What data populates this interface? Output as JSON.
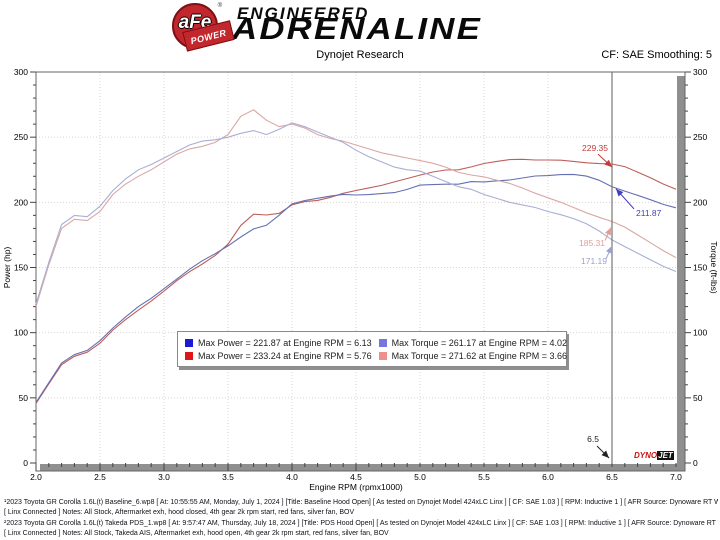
{
  "header": {
    "logo_text": "aFe",
    "logo_sub": "POWER",
    "logo_reg": "®",
    "brand_top": "ENGINEERED",
    "brand_main": "ADRENALINE",
    "smoothing": "CF: SAE Smoothing: 5"
  },
  "chart_data": {
    "type": "line",
    "title": "Dynojet Research",
    "xlabel": "Engine RPM (rpmx1000)",
    "ylabel_left": "Power (hp)",
    "ylabel_right": "Torque (ft-lbs)",
    "xlim": [
      2.0,
      7.0
    ],
    "ylim_left": [
      0,
      300
    ],
    "ylim_right": [
      0,
      300
    ],
    "grid": "dotted",
    "x_ticks": [
      "2.0",
      "2.5",
      "3.0",
      "3.5",
      "4.0",
      "4.5",
      "5.0",
      "5.5",
      "6.0",
      "6.5",
      "7.0"
    ],
    "y_ticks_left": [
      "0",
      "50",
      "100",
      "150",
      "200",
      "250",
      "300"
    ],
    "y_ticks_right": [
      "0",
      "50",
      "100",
      "150",
      "200",
      "250",
      "300"
    ],
    "rpm": [
      2.0,
      2.1,
      2.2,
      2.3,
      2.4,
      2.5,
      2.6,
      2.7,
      2.8,
      2.9,
      3.0,
      3.1,
      3.2,
      3.3,
      3.4,
      3.5,
      3.6,
      3.7,
      3.8,
      3.9,
      4.0,
      4.1,
      4.2,
      4.3,
      4.4,
      4.5,
      4.6,
      4.7,
      4.8,
      4.9,
      5.0,
      5.1,
      5.2,
      5.3,
      5.4,
      5.5,
      5.6,
      5.7,
      5.8,
      5.9,
      6.0,
      6.1,
      6.2,
      6.3,
      6.4,
      6.5,
      6.6,
      6.7,
      6.8,
      6.9,
      7.0
    ],
    "series": [
      {
        "id": "power-takeda",
        "name": "Power - Takeda PDS (red)",
        "axis": "left",
        "color": "#bc5f5c",
        "values": [
          45.7,
          60.8,
          75.4,
          81.9,
          85.0,
          91.9,
          102.0,
          110.0,
          117.3,
          124.2,
          131.9,
          139.9,
          146.8,
          152.7,
          159.3,
          167.9,
          182.3,
          190.9,
          190.3,
          191.6,
          198.0,
          200.6,
          201.5,
          203.9,
          206.9,
          209.1,
          211.1,
          213.0,
          215.7,
          218.3,
          220.9,
          223.3,
          224.8,
          225.0,
          227.2,
          229.8,
          231.4,
          232.8,
          233.0,
          232.5,
          232.5,
          232.3,
          231.4,
          230.3,
          229.7,
          229.4,
          227.4,
          223.2,
          218.8,
          214.1,
          210.1
        ]
      },
      {
        "id": "power-baseline",
        "name": "Power - Baseline (blue)",
        "axis": "left",
        "color": "#6570b2",
        "values": [
          46.5,
          61.6,
          76.7,
          83.2,
          86.4,
          93.8,
          103.5,
          112.1,
          120.0,
          126.4,
          133.7,
          141.1,
          148.7,
          155.2,
          160.6,
          166.6,
          173.4,
          179.6,
          182.4,
          190.1,
          198.8,
          201.4,
          203.1,
          204.8,
          206.1,
          205.6,
          205.9,
          206.7,
          207.5,
          209.9,
          213.2,
          213.6,
          213.9,
          213.9,
          215.9,
          215.7,
          216.5,
          217.1,
          218.7,
          220.2,
          220.5,
          221.3,
          221.4,
          220.1,
          216.9,
          211.9,
          208.6,
          205.4,
          202.0,
          198.4,
          195.8
        ]
      },
      {
        "id": "torque-takeda",
        "name": "Torque - Takeda PDS (pink)",
        "axis": "right",
        "color": "#d9a8a4",
        "values": [
          120,
          152,
          180,
          187,
          186,
          193,
          206,
          214,
          220,
          225,
          231,
          237,
          241,
          243,
          246,
          252,
          266,
          271,
          263,
          258,
          260,
          257,
          252,
          249,
          247,
          244,
          241,
          238,
          236,
          234,
          232,
          230,
          227,
          223,
          221,
          219.5,
          217,
          214.5,
          211,
          207,
          203.5,
          200,
          196,
          192,
          188.5,
          185.3,
          181,
          175,
          169,
          163,
          157.6
        ]
      },
      {
        "id": "torque-baseline",
        "name": "Torque - Baseline (light blue)",
        "axis": "right",
        "color": "#a9afd4",
        "values": [
          122,
          154,
          183,
          190,
          189,
          197,
          209,
          218,
          225,
          229,
          234,
          239,
          244,
          247,
          248,
          250,
          253,
          255,
          252,
          256,
          261,
          258,
          254,
          250,
          246,
          240,
          235,
          231,
          227,
          225,
          224,
          220,
          216,
          212,
          210,
          206,
          203,
          200,
          198,
          196,
          193,
          190.5,
          187.5,
          183.5,
          178,
          171.2,
          166,
          161,
          156,
          151,
          146.9
        ]
      }
    ],
    "legend": {
      "entries": [
        {
          "label": "Max Power = 221.87 at Engine RPM = 6.13",
          "color": "#1b1bd6"
        },
        {
          "label": "Max Torque = 261.17 at Engine RPM = 4.02",
          "color": "#7576e0"
        },
        {
          "label": "Max Power = 233.24 at Engine RPM = 5.76",
          "color": "#e01616"
        },
        {
          "label": "Max Torque = 271.62 at Engine RPM = 3.66",
          "color": "#ef8e8c"
        }
      ]
    },
    "cursor": {
      "rpm": 6.5,
      "label": "6.5"
    },
    "annotations": [
      {
        "text": "229.35",
        "color": "#c23b38",
        "rpm": 6.5,
        "value": 229.35,
        "tip": [
          0,
          3
        ],
        "line_start": [
          -14,
          -13
        ],
        "label_pos": [
          -4,
          -24
        ],
        "anchor": "end"
      },
      {
        "text": "211.87",
        "color": "#4040c0",
        "rpm": 6.5,
        "value": 211.87,
        "tip": [
          4,
          2
        ],
        "line_start": [
          18,
          20
        ],
        "label_pos": [
          20,
          19
        ],
        "anchor": "start"
      },
      {
        "text": "185.31",
        "color": "#de9e9a",
        "rpm": 6.5,
        "value": 185.31,
        "tip": [
          -1,
          6
        ],
        "line_start": [
          -6,
          13
        ],
        "label_pos": [
          -6,
          11
        ],
        "anchor": "end"
      },
      {
        "text": "171.19",
        "color": "#9ba1d2",
        "rpm": 6.5,
        "value": 171.19,
        "tip": [
          0,
          6
        ],
        "line_start": [
          -6,
          13
        ],
        "label_pos": [
          -5,
          10
        ],
        "anchor": "end"
      },
      {
        "text": "6.5",
        "color": "#222222",
        "rpm": 6.5,
        "value": 0,
        "tip": [
          -3,
          -5
        ],
        "line_start": [
          -12,
          -12
        ],
        "label_pos": [
          -10,
          -24
        ],
        "anchor": "end"
      }
    ],
    "watermark": {
      "part1": "DYNO",
      "part2": "JET"
    }
  },
  "footer": {
    "lines": [
      "¹2023 Toyota GR Corolla 1.6L(t) Baseline_6.wp8 [ At: 10:55:55 AM, Monday, July 1, 2024 ] [Title: Baseline Hood Open]  [ As tested on Dynojet Model 424xLC Linx ] [ CF: SAE 1.03 ] [ RPM: Inductive 1 ] [ AFR Source: Dynoware RT WB ]",
      "[ Linx Connected ] Notes: All Stock, Aftermarket exh, hood closed, 4th gear 2k rpm start, red fans, silver fan, BOV",
      "²2023 Toyota GR Corolla 1.6L(t) Takeda PDS_1.wp8 [ At: 9:57:47 AM, Thursday, July 18, 2024 ] [Title: PDS Hood Open]  [ As tested on Dynojet Model 424xLC Linx ] [ CF: SAE 1.03 ] [ RPM: Inductive 1 ] [ AFR Source: Dynoware RT WB ]",
      "[ Linx Connected ] Notes: All Stock, Takeda AIS, Aftermarket exh, hood open, 4th gear 2k rpm start, red fans, silver fan, BOV"
    ]
  }
}
